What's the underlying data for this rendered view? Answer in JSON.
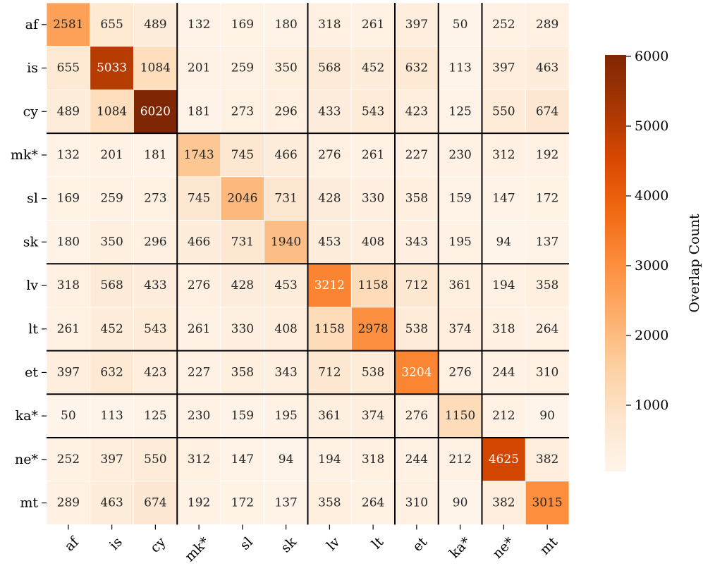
{
  "chart_data": {
    "type": "heatmap",
    "title": "",
    "xlabel": "",
    "ylabel": "",
    "x_labels": [
      "af",
      "is",
      "cy",
      "mk*",
      "sl",
      "sk",
      "lv",
      "lt",
      "et",
      "ka*",
      "ne*",
      "mt"
    ],
    "y_labels": [
      "af",
      "is",
      "cy",
      "mk*",
      "sl",
      "sk",
      "lv",
      "lt",
      "et",
      "ka*",
      "ne*",
      "mt"
    ],
    "values": [
      [
        2581,
        655,
        489,
        132,
        169,
        180,
        318,
        261,
        397,
        50,
        252,
        289
      ],
      [
        655,
        5033,
        1084,
        201,
        259,
        350,
        568,
        452,
        632,
        113,
        397,
        463
      ],
      [
        489,
        1084,
        6020,
        181,
        273,
        296,
        433,
        543,
        423,
        125,
        550,
        674
      ],
      [
        132,
        201,
        181,
        1743,
        745,
        466,
        276,
        261,
        227,
        230,
        312,
        192
      ],
      [
        169,
        259,
        273,
        745,
        2046,
        731,
        428,
        330,
        358,
        159,
        147,
        172
      ],
      [
        180,
        350,
        296,
        466,
        731,
        1940,
        453,
        408,
        343,
        195,
        94,
        137
      ],
      [
        318,
        568,
        433,
        276,
        428,
        453,
        3212,
        1158,
        712,
        361,
        194,
        358
      ],
      [
        261,
        452,
        543,
        261,
        330,
        408,
        1158,
        2978,
        538,
        374,
        318,
        264
      ],
      [
        397,
        632,
        423,
        227,
        358,
        343,
        712,
        538,
        3204,
        276,
        244,
        310
      ],
      [
        50,
        113,
        125,
        230,
        159,
        195,
        361,
        374,
        276,
        1150,
        212,
        90
      ],
      [
        252,
        397,
        550,
        312,
        147,
        94,
        194,
        318,
        244,
        212,
        4625,
        382
      ],
      [
        289,
        463,
        674,
        192,
        172,
        137,
        358,
        264,
        310,
        90,
        382,
        3015
      ]
    ],
    "group_boundaries": [
      3,
      6,
      8,
      9,
      10
    ],
    "colormap": "Oranges",
    "vmin": 50,
    "vmax": 6020,
    "colorbar": {
      "label": "Overlap Count",
      "ticks": [
        1000,
        2000,
        3000,
        4000,
        5000,
        6000
      ]
    },
    "grid": false
  }
}
